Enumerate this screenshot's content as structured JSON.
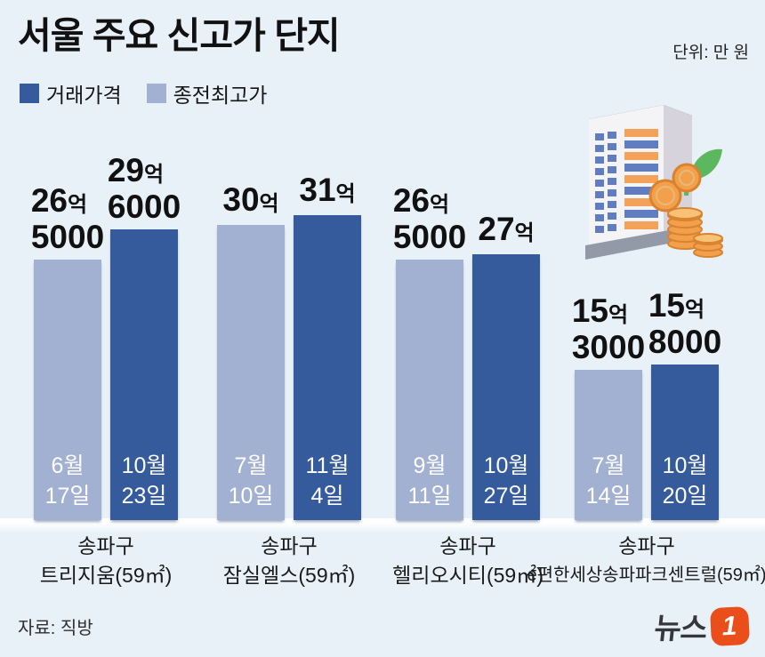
{
  "header": {
    "title": "서울 주요 신고가 단지",
    "unit_label": "단위: 만 원"
  },
  "legend": [
    {
      "label": "거래가격",
      "color": "#355b9d"
    },
    {
      "label": "종전최고가",
      "color": "#a2b0d2"
    }
  ],
  "footer": {
    "source": "자료: 직방",
    "logo_text": "뉴스",
    "logo_badge": "1"
  },
  "colors": {
    "background": "#e8f1f8",
    "bar_current": "#355b9d",
    "bar_previous": "#a2b0d2",
    "logo_orange": "#e94e1b"
  },
  "chart_data": {
    "type": "bar",
    "title": "서울 주요 신고가 단지",
    "unit": "만 원",
    "legend_position": "top-left",
    "axis": "none (zero baseline, value labels above bars)",
    "series_names": [
      "종전최고가",
      "거래가격"
    ],
    "groups": [
      {
        "district": "송파구",
        "complex": "트리지움(59㎡)",
        "previous": {
          "value_manwon": 265000,
          "label_main": "26",
          "label_unit": "억",
          "label_sub": "5000",
          "date_month": "6월",
          "date_day": "17일"
        },
        "current": {
          "value_manwon": 296000,
          "label_main": "29",
          "label_unit": "억",
          "label_sub": "6000",
          "date_month": "10월",
          "date_day": "23일"
        }
      },
      {
        "district": "송파구",
        "complex": "잠실엘스(59㎡)",
        "previous": {
          "value_manwon": 300000,
          "label_main": "30",
          "label_unit": "억",
          "label_sub": null,
          "date_month": "7월",
          "date_day": "10일"
        },
        "current": {
          "value_manwon": 310000,
          "label_main": "31",
          "label_unit": "억",
          "label_sub": null,
          "date_month": "11월",
          "date_day": "4일"
        }
      },
      {
        "district": "송파구",
        "complex": "헬리오시티(59㎡)",
        "previous": {
          "value_manwon": 265000,
          "label_main": "26",
          "label_unit": "억",
          "label_sub": "5000",
          "date_month": "9월",
          "date_day": "11일"
        },
        "current": {
          "value_manwon": 270000,
          "label_main": "27",
          "label_unit": "억",
          "label_sub": null,
          "date_month": "10월",
          "date_day": "27일"
        }
      },
      {
        "district": "송파구",
        "complex": "e편한세상송파파크센트럴(59㎡)",
        "previous": {
          "value_manwon": 153000,
          "label_main": "15",
          "label_unit": "억",
          "label_sub": "3000",
          "date_month": "7월",
          "date_day": "14일"
        },
        "current": {
          "value_manwon": 158000,
          "label_main": "15",
          "label_unit": "억",
          "label_sub": "8000",
          "date_month": "10월",
          "date_day": "20일"
        }
      }
    ]
  }
}
